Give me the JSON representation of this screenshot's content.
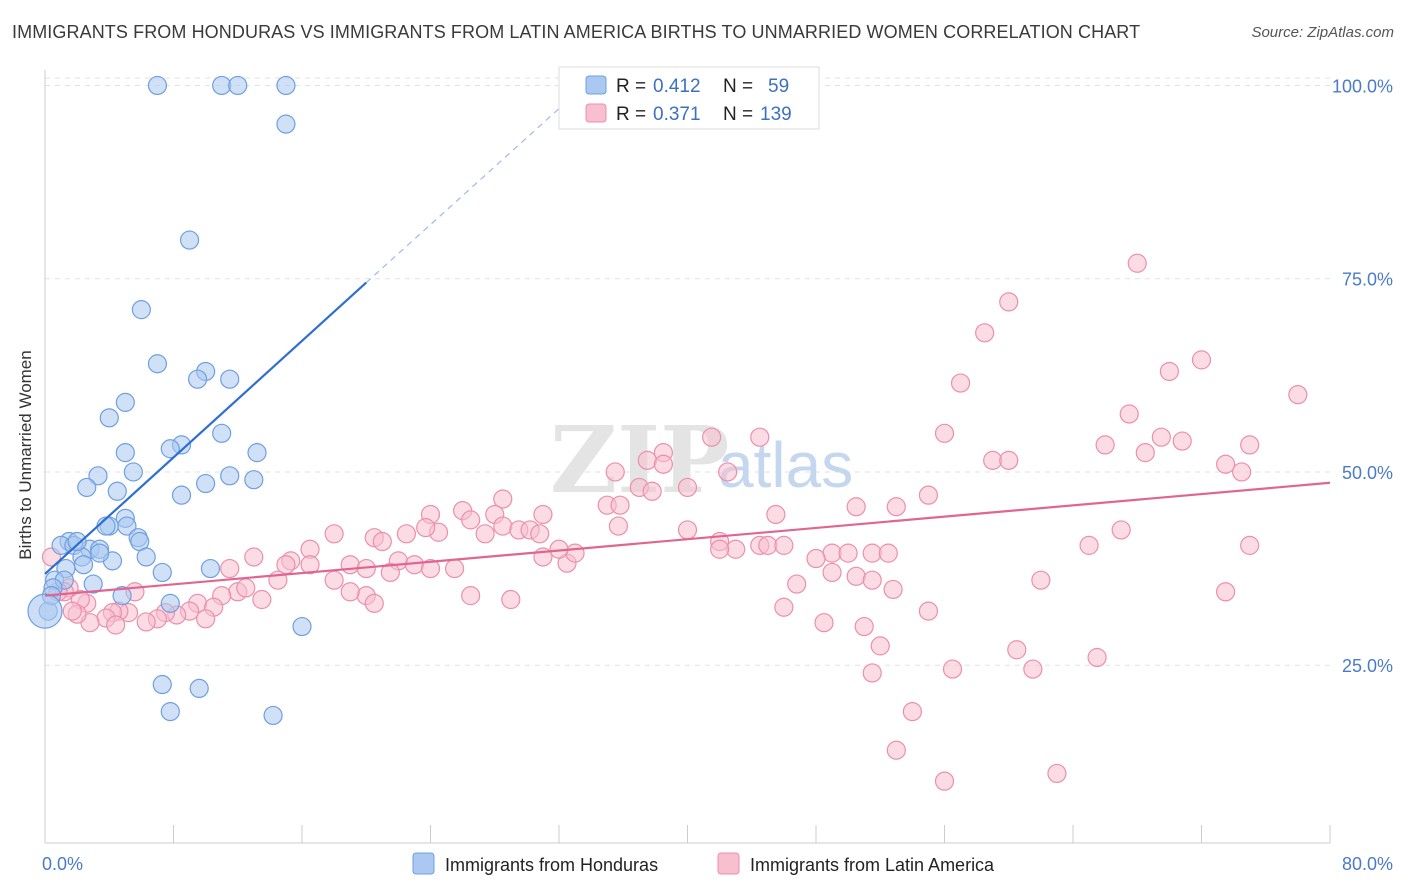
{
  "header": {
    "title": "IMMIGRANTS FROM HONDURAS VS IMMIGRANTS FROM LATIN AMERICA BIRTHS TO UNMARRIED WOMEN CORRELATION CHART",
    "source": "Source: ZipAtlas.com"
  },
  "watermark": {
    "part1": "ZIP",
    "part2": "atlas"
  },
  "stats": [
    {
      "r_label": "R =",
      "r_value": "0.412",
      "n_label": "N =",
      "n_value": "59",
      "fill": "#aac8f0",
      "stroke": "#6f9fe0"
    },
    {
      "r_label": "R =",
      "r_value": "0.371",
      "n_label": "N =",
      "n_value": "139",
      "fill": "#f7bfd0",
      "stroke": "#ec8fab"
    }
  ],
  "chart_data": {
    "type": "scatter",
    "title": "IMMIGRANTS FROM HONDURAS VS IMMIGRANTS FROM LATIN AMERICA BIRTHS TO UNMARRIED WOMEN CORRELATION CHART",
    "xlabel": "",
    "ylabel": "Births to Unmarried Women",
    "xlim": [
      0,
      80
    ],
    "ylim": [
      2,
      102
    ],
    "x_tick_labels": [
      {
        "value": 0,
        "label": "0.0%"
      },
      {
        "value": 80,
        "label": "80.0%"
      }
    ],
    "y_tick_labels": [
      {
        "value": 25,
        "label": "25.0%"
      },
      {
        "value": 50,
        "label": "50.0%"
      },
      {
        "value": 75,
        "label": "75.0%"
      },
      {
        "value": 100,
        "label": "100.0%"
      }
    ],
    "grid": true,
    "legend_position": "bottom-center",
    "series": [
      {
        "name": "Immigrants from Honduras",
        "color_fill": "#aac8f0",
        "color_stroke": "#6f9fe0",
        "line_color": "#2f6fd0",
        "trend": {
          "x": [
            0,
            20
          ],
          "y": [
            36.8,
            74.5
          ]
        },
        "trend_extension": {
          "x": [
            20,
            33.6
          ],
          "y": [
            74.5,
            100
          ]
        },
        "points": [
          [
            7,
            100
          ],
          [
            11,
            100
          ],
          [
            12,
            100
          ],
          [
            15,
            100
          ],
          [
            15,
            95
          ],
          [
            9,
            80
          ],
          [
            6,
            71
          ],
          [
            7,
            64
          ],
          [
            10,
            63
          ],
          [
            11.5,
            62
          ],
          [
            9.5,
            62
          ],
          [
            5,
            59
          ],
          [
            4,
            57
          ],
          [
            11,
            55
          ],
          [
            5,
            52.5
          ],
          [
            8.5,
            53.5
          ],
          [
            7.8,
            53
          ],
          [
            13.2,
            52.5
          ],
          [
            3.3,
            49.5
          ],
          [
            5.5,
            50
          ],
          [
            11.5,
            49.5
          ],
          [
            10,
            48.5
          ],
          [
            13,
            49
          ],
          [
            2.6,
            48
          ],
          [
            4.5,
            47.5
          ],
          [
            8.5,
            47
          ],
          [
            5,
            44
          ],
          [
            4,
            43
          ],
          [
            3.8,
            43
          ],
          [
            5.1,
            43
          ],
          [
            1.5,
            41
          ],
          [
            1,
            40.5
          ],
          [
            1.8,
            40.5
          ],
          [
            2.8,
            40
          ],
          [
            3.4,
            40
          ],
          [
            5.8,
            41.5
          ],
          [
            5.9,
            41
          ],
          [
            2.3,
            39
          ],
          [
            6.3,
            39
          ],
          [
            2.4,
            38
          ],
          [
            4.2,
            38.5
          ],
          [
            10.3,
            37.5
          ],
          [
            7.3,
            37
          ],
          [
            1.3,
            37.5
          ],
          [
            0.6,
            36
          ],
          [
            1.2,
            36
          ],
          [
            3,
            35.5
          ],
          [
            0.5,
            35
          ],
          [
            4.8,
            34
          ],
          [
            7.8,
            33
          ],
          [
            0.2,
            32
          ],
          [
            16,
            30
          ],
          [
            7.3,
            22.5
          ],
          [
            9.6,
            22
          ],
          [
            7.8,
            19
          ],
          [
            14.2,
            18.5
          ],
          [
            0.4,
            34
          ],
          [
            2,
            41
          ],
          [
            3.4,
            39.5
          ]
        ],
        "large_point": [
          0,
          32
        ]
      },
      {
        "name": "Immigrants from Latin America",
        "color_fill": "#f7bfd0",
        "color_stroke": "#ec8fab",
        "line_color": "#e06591",
        "trend": {
          "x": [
            0,
            80
          ],
          "y": [
            34,
            48.6
          ]
        },
        "points": [
          [
            68,
            77
          ],
          [
            60,
            72
          ],
          [
            58.5,
            68
          ],
          [
            72,
            64.5
          ],
          [
            70,
            63
          ],
          [
            57,
            61.5
          ],
          [
            78,
            60
          ],
          [
            67.5,
            57.5
          ],
          [
            56,
            55
          ],
          [
            69.5,
            54.5
          ],
          [
            70.8,
            54
          ],
          [
            75,
            53.5
          ],
          [
            66,
            53.5
          ],
          [
            68.5,
            52.5
          ],
          [
            73.5,
            51
          ],
          [
            59,
            51.5
          ],
          [
            60,
            51.5
          ],
          [
            74.5,
            50
          ],
          [
            41.5,
            54.5
          ],
          [
            44.5,
            54.5
          ],
          [
            38.5,
            52.5
          ],
          [
            37.5,
            51.5
          ],
          [
            38.5,
            51
          ],
          [
            35.5,
            50
          ],
          [
            42.5,
            50
          ],
          [
            37,
            48
          ],
          [
            40,
            48
          ],
          [
            37.8,
            47.5
          ],
          [
            28.5,
            46.5
          ],
          [
            35,
            45.7
          ],
          [
            35.8,
            45.7
          ],
          [
            50.5,
            45.5
          ],
          [
            53,
            45.5
          ],
          [
            55,
            47
          ],
          [
            45.5,
            44.5
          ],
          [
            26,
            45
          ],
          [
            28,
            44.5
          ],
          [
            31,
            44.5
          ],
          [
            24,
            44.5
          ],
          [
            26.5,
            43.8
          ],
          [
            28.5,
            43
          ],
          [
            29.5,
            42.5
          ],
          [
            27.4,
            42
          ],
          [
            30.2,
            42.5
          ],
          [
            30.8,
            42
          ],
          [
            24.5,
            42.2
          ],
          [
            23.7,
            42.8
          ],
          [
            35.7,
            43
          ],
          [
            40,
            42.5
          ],
          [
            42,
            41
          ],
          [
            22.5,
            42
          ],
          [
            18,
            42
          ],
          [
            20.5,
            41.5
          ],
          [
            21,
            41
          ],
          [
            16.5,
            40
          ],
          [
            15.3,
            38.5
          ],
          [
            15,
            38
          ],
          [
            13,
            39
          ],
          [
            11.5,
            37.5
          ],
          [
            14.5,
            36
          ],
          [
            16.5,
            38
          ],
          [
            19,
            38
          ],
          [
            20,
            37.5
          ],
          [
            22,
            38.5
          ],
          [
            23,
            38
          ],
          [
            24,
            37.5
          ],
          [
            21.5,
            37
          ],
          [
            25.5,
            37.5
          ],
          [
            32.5,
            38.2
          ],
          [
            31,
            39
          ],
          [
            33,
            39.5
          ],
          [
            32,
            40
          ],
          [
            43,
            40
          ],
          [
            44.5,
            40.5
          ],
          [
            42,
            40
          ],
          [
            45,
            40.5
          ],
          [
            46,
            40.5
          ],
          [
            49,
            39.5
          ],
          [
            48,
            38.8
          ],
          [
            50,
            39.5
          ],
          [
            51.5,
            39.5
          ],
          [
            52.5,
            39.5
          ],
          [
            49,
            37
          ],
          [
            50.5,
            36.5
          ],
          [
            51.5,
            36
          ],
          [
            46.8,
            35.5
          ],
          [
            26.5,
            34
          ],
          [
            29,
            33.5
          ],
          [
            52.8,
            34.8
          ],
          [
            51,
            30
          ],
          [
            48.5,
            30.5
          ],
          [
            46,
            32.5
          ],
          [
            55,
            32
          ],
          [
            62,
            36
          ],
          [
            65,
            40.5
          ],
          [
            67,
            42.5
          ],
          [
            75,
            40.5
          ],
          [
            73.5,
            34.5
          ],
          [
            60.5,
            27
          ],
          [
            65.5,
            26
          ],
          [
            61.5,
            24.5
          ],
          [
            56.5,
            24.5
          ],
          [
            52,
            27.5
          ],
          [
            51.5,
            24
          ],
          [
            54,
            19
          ],
          [
            53,
            14
          ],
          [
            56,
            10
          ],
          [
            63,
            11
          ],
          [
            20,
            34
          ],
          [
            18,
            36
          ],
          [
            19,
            34.5
          ],
          [
            20.5,
            33
          ],
          [
            12,
            34.5
          ],
          [
            13.5,
            33.5
          ],
          [
            12.5,
            35
          ],
          [
            11,
            34
          ],
          [
            9.5,
            33
          ],
          [
            10.5,
            32.5
          ],
          [
            9,
            32
          ],
          [
            10,
            31
          ],
          [
            8.2,
            31.5
          ],
          [
            7.5,
            31.8
          ],
          [
            7,
            31
          ],
          [
            6.3,
            30.6
          ],
          [
            5.6,
            34.5
          ],
          [
            5.2,
            31.8
          ],
          [
            4.6,
            32
          ],
          [
            4.2,
            31.8
          ],
          [
            3.8,
            31.1
          ],
          [
            2.8,
            30.5
          ],
          [
            2.6,
            33
          ],
          [
            2.2,
            33.5
          ],
          [
            2,
            31.6
          ],
          [
            1.7,
            32
          ],
          [
            1.5,
            35
          ],
          [
            1.2,
            34.5
          ],
          [
            0.8,
            34.5
          ],
          [
            0.4,
            39
          ],
          [
            4.4,
            30.2
          ]
        ]
      }
    ]
  }
}
